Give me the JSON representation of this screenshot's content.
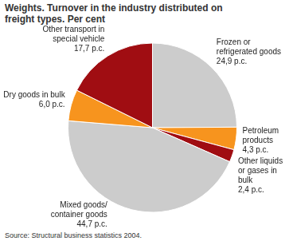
{
  "chart_data": {
    "type": "pie",
    "title": "Weights. Turnover in the industry distributed on freight types. Per cent",
    "source": "Source: Structural business statistics 2004.",
    "categories": [
      "Frozen or refrigerated goods",
      "Petroleum products",
      "Other liquids or gases in bulk",
      "Mixed goods/container goods",
      "Dry goods in bulk",
      "Other transport in special vehicle"
    ],
    "values": [
      24.9,
      4.3,
      2.4,
      44.7,
      6.0,
      17.7
    ],
    "value_labels": [
      "24,9 p.c.",
      "4,3 p.c.",
      "2,4 p.c.",
      "44,7 p.c.",
      "6,0 p.c.",
      "17,7 p.c."
    ],
    "colors": [
      "#cccccc",
      "#f7941e",
      "#a00d12",
      "#cccccc",
      "#f7941e",
      "#a00d12"
    ],
    "data_labels": true
  }
}
